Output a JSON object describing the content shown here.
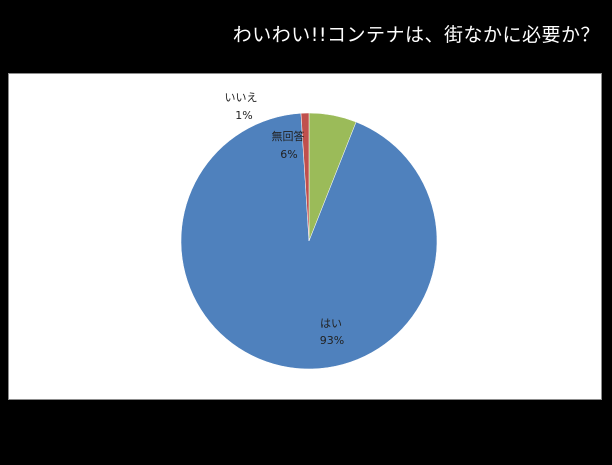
{
  "slide": {
    "title": "わいわい!!コンテナは、街なかに必要か？"
  },
  "chart_data": {
    "type": "pie",
    "title": "",
    "slices": [
      {
        "label": "無回答",
        "value": 6,
        "display": "6%",
        "color": "#9bbb59"
      },
      {
        "label": "はい",
        "value": 93,
        "display": "93%",
        "color": "#4f81bd"
      },
      {
        "label": "いいえ",
        "value": 1,
        "display": "1%",
        "color": "#c0504d"
      }
    ],
    "start_angle_deg": 0,
    "direction": "clockwise",
    "legend": "none"
  }
}
